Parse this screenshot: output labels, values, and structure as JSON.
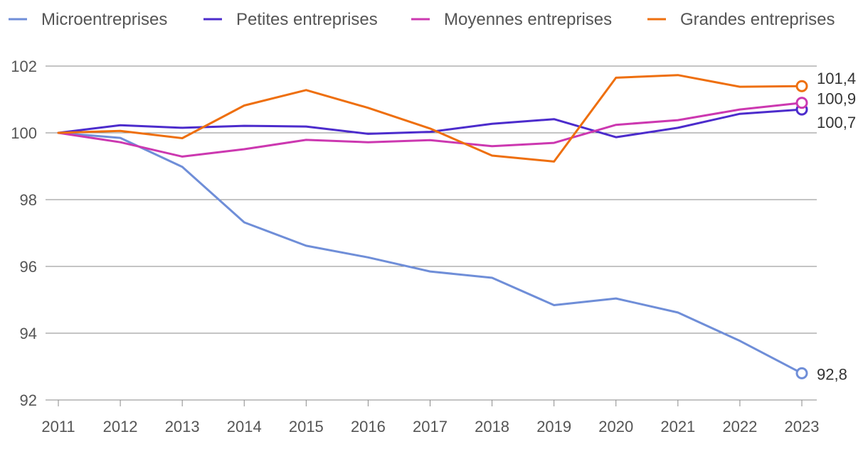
{
  "chart_data": {
    "type": "line",
    "title": "",
    "xlabel": "",
    "ylabel": "",
    "x": [
      "2011",
      "2012",
      "2013",
      "2014",
      "2015",
      "2016",
      "2017",
      "2018",
      "2019",
      "2020",
      "2021",
      "2022",
      "2023"
    ],
    "ylim": [
      92,
      102
    ],
    "yticks": [
      92,
      94,
      96,
      98,
      100,
      102
    ],
    "ytick_labels": [
      "92",
      "94",
      "96",
      "98",
      "100",
      "102"
    ],
    "grid": true,
    "legend_position": "top",
    "series": [
      {
        "name": "Microentreprises",
        "color": "#6f8ed8",
        "values": [
          100,
          99.85,
          98.98,
          97.32,
          96.62,
          96.27,
          95.85,
          95.66,
          94.84,
          95.04,
          94.62,
          93.77,
          92.8
        ],
        "end_label": "92,8"
      },
      {
        "name": "Petites entreprises",
        "color": "#4c2ccc",
        "values": [
          100,
          100.23,
          100.15,
          100.21,
          100.19,
          99.97,
          100.03,
          100.27,
          100.41,
          99.87,
          100.15,
          100.57,
          100.7
        ],
        "end_label": "100,7"
      },
      {
        "name": "Moyennes entreprises",
        "color": "#cc38b0",
        "values": [
          100,
          99.72,
          99.29,
          99.51,
          99.79,
          99.72,
          99.78,
          99.6,
          99.7,
          100.24,
          100.38,
          100.7,
          100.9
        ],
        "end_label": "100,9"
      },
      {
        "name": "Grandes entreprises",
        "color": "#ee6f0e",
        "values": [
          100,
          100.06,
          99.84,
          100.82,
          101.28,
          100.75,
          100.13,
          99.32,
          99.14,
          101.65,
          101.73,
          101.38,
          101.4
        ],
        "end_label": "101,4"
      }
    ]
  }
}
